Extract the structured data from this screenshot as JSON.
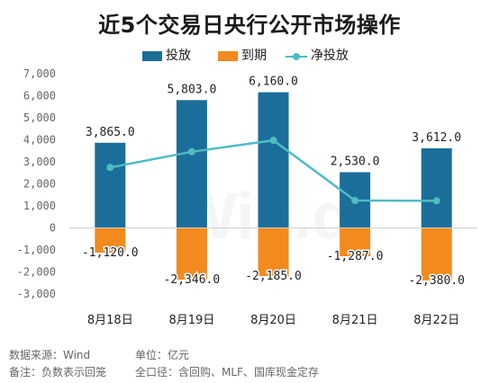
{
  "title": "近5个交易日央行公开市场操作",
  "legend": {
    "injection": "投放",
    "maturity": "到期",
    "net": "净投放"
  },
  "colors": {
    "injection": "#1b6e9a",
    "maturity": "#f28a1e",
    "net": "#4dbdc2",
    "axis_text": "#666666"
  },
  "watermark": "Win.d",
  "notes": {
    "source": "数据来源：Wind",
    "unit": "单位：亿元",
    "remark": "备注：负数表示回笼",
    "scope": "全口径：含回购、MLF、国库现金定存"
  },
  "chart_data": {
    "type": "bar",
    "categories": [
      "8月18日",
      "8月19日",
      "8月20日",
      "8月21日",
      "8月22日"
    ],
    "series": [
      {
        "name": "投放",
        "type": "bar",
        "values": [
          3865.0,
          5803.0,
          6160.0,
          2530.0,
          3612.0
        ],
        "labels": [
          "3,865.0",
          "5,803.0",
          "6,160.0",
          "2,530.0",
          "3,612.0"
        ]
      },
      {
        "name": "到期",
        "type": "bar",
        "values": [
          -1120.0,
          -2346.0,
          -2185.0,
          -1287.0,
          -2380.0
        ],
        "labels": [
          "-1,120.0",
          "-2,346.0",
          "-2,185.0",
          "-1,287.0",
          "-2,380.0"
        ]
      },
      {
        "name": "净投放",
        "type": "line",
        "values": [
          2745.0,
          3457.0,
          3975.0,
          1243.0,
          1232.0
        ]
      }
    ],
    "ylim": [
      -3000,
      7000
    ],
    "yticks": [
      -3000,
      -2000,
      -1000,
      0,
      1000,
      2000,
      3000,
      4000,
      5000,
      6000,
      7000
    ],
    "ytick_labels": [
      "-3,000",
      "-2,000",
      "-1,000",
      "0",
      "1,000",
      "2,000",
      "3,000",
      "4,000",
      "5,000",
      "6,000",
      "7,000"
    ],
    "xlabel": "",
    "ylabel": "",
    "grid": false,
    "legend_position": "top-center"
  }
}
